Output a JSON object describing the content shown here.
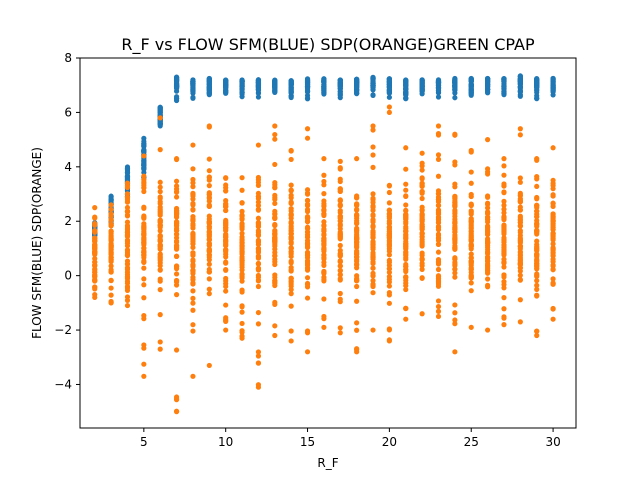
{
  "chart_data": {
    "type": "scatter",
    "title": "R_F vs FLOW SFM(BLUE) SDP(ORANGE)GREEN CPAP",
    "xlabel": "R_F",
    "ylabel": "FLOW SFM(BLUE) SDP(ORANGE)",
    "xlim": [
      1.1,
      31.4
    ],
    "ylim": [
      -5.6,
      8.0
    ],
    "xticks": [
      5,
      10,
      15,
      20,
      25,
      30
    ],
    "yticks": [
      -4,
      -2,
      0,
      2,
      4,
      6,
      8
    ],
    "grid": false,
    "legend": "none",
    "colors": {
      "blue": "#1f77b4",
      "orange": "#ff7f0e"
    },
    "x": [
      2,
      3,
      4,
      5,
      6,
      7,
      8,
      9,
      10,
      11,
      12,
      13,
      14,
      15,
      16,
      17,
      18,
      19,
      20,
      21,
      22,
      23,
      24,
      25,
      26,
      27,
      28,
      29,
      30
    ],
    "blue_ranges": [
      [
        1.4,
        1.95
      ],
      [
        1.9,
        2.95
      ],
      [
        2.9,
        4.0
      ],
      [
        3.6,
        5.05
      ],
      [
        5.5,
        6.2
      ],
      [
        6.4,
        7.3
      ],
      [
        6.5,
        7.2
      ],
      [
        6.5,
        7.25
      ],
      [
        6.5,
        7.2
      ],
      [
        6.5,
        7.2
      ],
      [
        6.5,
        7.2
      ],
      [
        6.5,
        7.2
      ],
      [
        6.5,
        7.2
      ],
      [
        6.5,
        7.25
      ],
      [
        6.5,
        7.25
      ],
      [
        6.5,
        7.2
      ],
      [
        6.5,
        7.25
      ],
      [
        6.5,
        7.3
      ],
      [
        6.5,
        7.25
      ],
      [
        6.5,
        7.2
      ],
      [
        6.5,
        7.2
      ],
      [
        6.5,
        7.2
      ],
      [
        6.5,
        7.25
      ],
      [
        6.5,
        7.25
      ],
      [
        6.5,
        7.25
      ],
      [
        6.5,
        7.25
      ],
      [
        6.5,
        7.35
      ],
      [
        6.5,
        7.25
      ],
      [
        6.5,
        7.25
      ]
    ],
    "orange_ranges": [
      [
        -0.8,
        2.5
      ],
      [
        -1.0,
        2.6
      ],
      [
        -1.1,
        3.4
      ],
      [
        -3.7,
        4.4
      ],
      [
        -2.7,
        5.8
      ],
      [
        -5.0,
        4.3
      ],
      [
        -3.7,
        4.8
      ],
      [
        -3.3,
        5.5
      ],
      [
        -2.0,
        3.6
      ],
      [
        -2.3,
        3.6
      ],
      [
        -4.1,
        4.8
      ],
      [
        -2.2,
        5.5
      ],
      [
        -2.4,
        4.6
      ],
      [
        -2.8,
        5.4
      ],
      [
        -1.9,
        4.3
      ],
      [
        -2.1,
        4.2
      ],
      [
        -2.8,
        4.3
      ],
      [
        -2.0,
        5.5
      ],
      [
        -2.4,
        6.2
      ],
      [
        -1.6,
        4.7
      ],
      [
        -1.4,
        4.5
      ],
      [
        -1.5,
        5.5
      ],
      [
        -2.8,
        5.2
      ],
      [
        -1.9,
        4.6
      ],
      [
        -2.0,
        5.0
      ],
      [
        -1.8,
        4.3
      ],
      [
        -1.7,
        5.4
      ],
      [
        -2.2,
        4.3
      ],
      [
        -1.6,
        4.7
      ]
    ]
  }
}
